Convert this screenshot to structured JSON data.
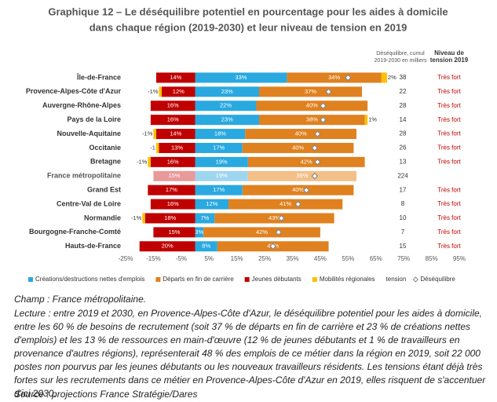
{
  "chart_data": {
    "type": "stacked-barh",
    "title": [
      "Graphique 12 – Le déséquilibre potentiel en pourcentage pour les aides à domicile",
      "dans chaque région (2019-2030) et leur niveau de tension en 2019"
    ],
    "categories": [
      "Île-de-France",
      "Provence-Alpes-Côte d'Azur",
      "Auvergne-Rhône-Alpes",
      "Pays de la Loire",
      "Nouvelle-Aquitaine",
      "Occitanie",
      "Bretagne",
      "France métropolitaine",
      "Grand Est",
      "Centre-Val de Loire",
      "Normandie",
      "Bourgogne-Franche-Comté",
      "Hauts-de-France"
    ],
    "faded_category_index": 7,
    "series": [
      {
        "name": "Créations/destructions nettes d'emplois",
        "color": "#29a9e0",
        "faded_color": "#9fd6ef",
        "values": [
          33,
          23,
          22,
          23,
          18,
          17,
          19,
          19,
          17,
          12,
          7,
          3,
          8
        ],
        "value_labels": [
          "33%",
          "23%",
          "22%",
          "23%",
          "18%",
          "17%",
          "19%",
          "19%",
          "17%",
          "12%",
          "7%",
          "3%",
          "8%"
        ]
      },
      {
        "name": "Départs en fin de carrière",
        "color": "#e0811f",
        "faded_color": "#f3c08a",
        "values": [
          34,
          37,
          40,
          38,
          40,
          40,
          42,
          39,
          40,
          41,
          43,
          42,
          40
        ],
        "value_labels": [
          "34%",
          "37%",
          "40%",
          "38%",
          "40%",
          "40%",
          "42%",
          "39%",
          "40%",
          "41%",
          "43%",
          "42%",
          "40%"
        ]
      },
      {
        "name": "Jeunes débutants",
        "color": "#c00000",
        "faded_color": "#e89a9a",
        "values": [
          -14,
          -12,
          -16,
          -16,
          -14,
          -13,
          -16,
          -15,
          -17,
          -16,
          -18,
          -15,
          -20
        ],
        "value_labels": [
          "14%",
          "12%",
          "16%",
          "16%",
          "14%",
          "13%",
          "16%",
          "15%",
          "17%",
          "16%",
          "18%",
          "15%",
          "20%"
        ]
      },
      {
        "name": "Mobilités régionales",
        "color": "#ffc000",
        "faded_color": "#ffe08a",
        "values": [
          2,
          -1,
          null,
          1,
          -1,
          -1,
          -1,
          null,
          null,
          null,
          -1,
          null,
          null
        ],
        "value_labels": [
          "2%",
          "-1%",
          null,
          "1%",
          "-1%",
          "-1",
          "-1%",
          null,
          null,
          null,
          "-1%",
          null,
          null
        ]
      }
    ],
    "balance": {
      "name": "Déséquilibre",
      "color": "#888888",
      "values": [
        55,
        48,
        46,
        46,
        44,
        43,
        44,
        43,
        40,
        37,
        31,
        30,
        28
      ]
    },
    "tension_legend": "tension",
    "xlim": [
      -25,
      95
    ],
    "xticks": [
      {
        "value": -25,
        "label": "-25%"
      },
      {
        "value": -15,
        "label": "-15%"
      },
      {
        "value": -5,
        "label": "-5%"
      },
      {
        "value": 5,
        "label": "5%"
      },
      {
        "value": 15,
        "label": "15%"
      },
      {
        "value": 25,
        "label": "25%"
      },
      {
        "value": 35,
        "label": "35%"
      },
      {
        "value": 45,
        "label": "45%"
      },
      {
        "value": 55,
        "label": "55%"
      },
      {
        "value": 65,
        "label": "65%"
      },
      {
        "value": 75,
        "label": "75%"
      },
      {
        "value": 85,
        "label": "85%"
      },
      {
        "value": 95,
        "label": "95%"
      }
    ],
    "grid": false,
    "columns": {
      "deficit_header": [
        "Déséquilibre, cumul",
        "2019-2030 en milliers"
      ],
      "deficit_thousands": [
        38,
        22,
        28,
        14,
        28,
        26,
        13,
        224,
        17,
        8,
        10,
        7,
        15
      ],
      "tension_header": [
        "Niveau de",
        "tension 2019"
      ],
      "tension_level": [
        "Très fort",
        "Très fort",
        "Très fort",
        "Très fort",
        "Très fort",
        "Très fort",
        "Très fort",
        null,
        "Très fort",
        "Très fort",
        "Très fort",
        "Très fort",
        "Très fort"
      ]
    }
  },
  "notes": {
    "field": "Champ : France métropolitaine.",
    "reading": "Lecture : entre 2019 et 2030, en Provence-Alpes-Côte d'Azur, le déséquilibre potentiel pour les aides à domicile, entre les 60 % de besoins de recrutement (soit 37 % de départs en fin de carrière et 23 % de créations nettes d'emplois) et les 13 % de ressources en main-d'œuvre (12 % de jeunes débutants et 1 % de travailleurs en provenance d'autres régions), représenterait 48 % des emplois de ce métier dans la région en 2019, soit 22 000 postes non pourvus par les jeunes débutants ou les nouveaux travailleurs résidents. Les tensions étant déjà très fortes sur les recrutements dans ce métier en Provence-Alpes-Côte d'Azur en 2019, elles risquent de s'accentuer d'ici 2030.",
    "source": "Source : projections France Stratégie/Dares"
  }
}
